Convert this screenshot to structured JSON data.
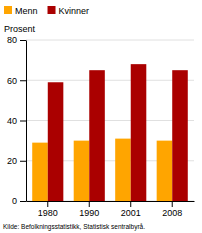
{
  "chart_data": {
    "type": "bar",
    "ylabel": "Prosent",
    "source": "Kilde: Befolkningsstatistikk, Statistisk sentralbyrå.",
    "categories": [
      "1980",
      "1990",
      "2001",
      "2008"
    ],
    "series": [
      {
        "name": "Menn",
        "color": "#FFA500",
        "values": [
          29,
          30,
          31,
          30
        ]
      },
      {
        "name": "Kvinner",
        "color": "#AA0000",
        "values": [
          59,
          65,
          68,
          65
        ]
      }
    ],
    "ylim": [
      0,
      80
    ],
    "yticks": [
      0,
      20,
      40,
      60,
      80
    ],
    "grid": true,
    "legend": "upper left"
  }
}
